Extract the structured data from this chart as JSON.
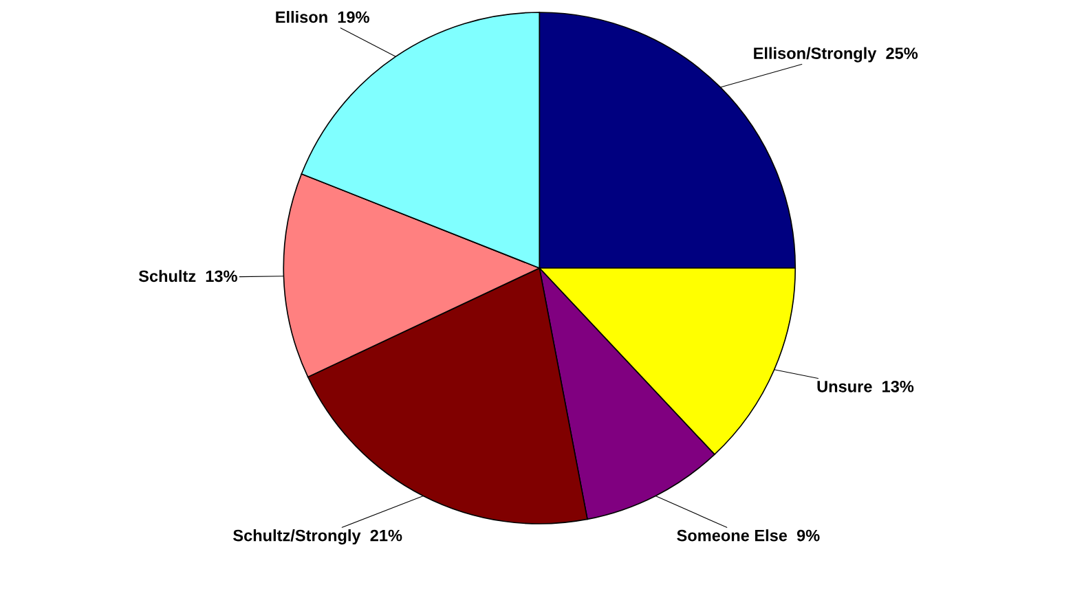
{
  "chart_data": {
    "type": "pie",
    "categories": [
      "Ellison/Strongly",
      "Unsure",
      "Someone Else",
      "Schultz/Strongly",
      "Schultz",
      "Ellison"
    ],
    "values": [
      25,
      13,
      9,
      21,
      13,
      19
    ],
    "value_labels": [
      "25%",
      "13%",
      "9%",
      "21%",
      "13%",
      "19%"
    ],
    "colors": [
      "#000080",
      "#ffff00",
      "#800080",
      "#800000",
      "#ff8080",
      "#80ffff"
    ],
    "legend": false
  }
}
